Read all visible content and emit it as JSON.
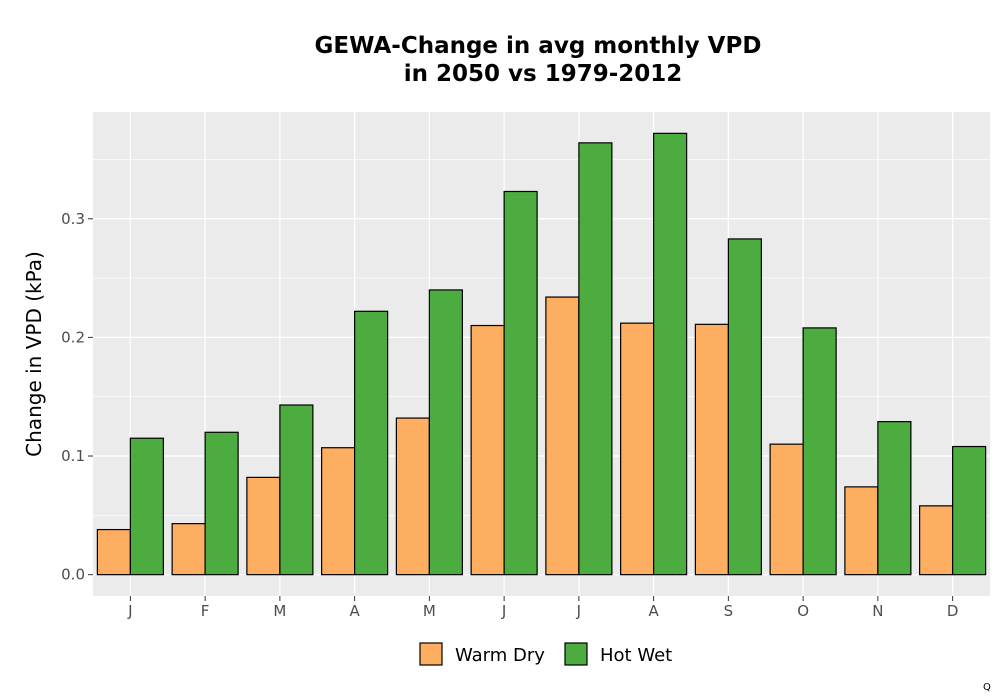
{
  "chart_data": {
    "type": "bar",
    "title": [
      "GEWA-Change in avg monthly VPD",
      "in 2050 vs 1979-2012"
    ],
    "xlabel": "",
    "ylabel": "Change in VPD (kPa)",
    "categories": [
      "J",
      "F",
      "M",
      "A",
      "M",
      "J",
      "J",
      "A",
      "S",
      "O",
      "N",
      "D"
    ],
    "series": [
      {
        "name": "Warm Dry",
        "color": "#FDAE61",
        "values": [
          0.038,
          0.043,
          0.082,
          0.107,
          0.132,
          0.21,
          0.234,
          0.212,
          0.211,
          0.11,
          0.074,
          0.058
        ]
      },
      {
        "name": "Hot Wet",
        "color": "#4DAC40",
        "values": [
          0.115,
          0.12,
          0.143,
          0.222,
          0.24,
          0.323,
          0.364,
          0.372,
          0.283,
          0.208,
          0.129,
          0.108
        ]
      }
    ],
    "yticks": [
      "0.0",
      "0.1",
      "0.2",
      "0.3"
    ],
    "ylim": [
      -0.018,
      0.39
    ],
    "grid": true,
    "legend_position": "bottom",
    "panel_color": "#EBEBEB"
  },
  "corner_mark": "Q"
}
